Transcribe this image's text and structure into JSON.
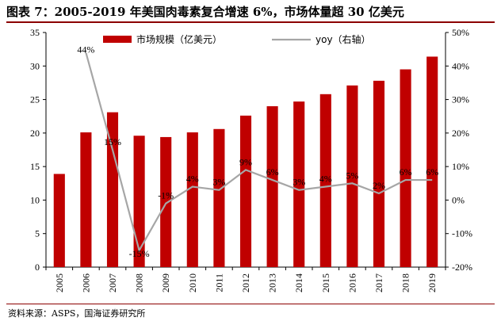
{
  "header": {
    "title": "图表 7：2005-2019 年美国肉毒素复合增速 6%，市场体量超 30 亿美元"
  },
  "footer": {
    "source": "资料来源：ASPS，国海证券研究所"
  },
  "colors": {
    "bar": "#c00000",
    "line": "#a6a6a6",
    "axis": "#000000",
    "rule": "#8b0000"
  },
  "chart_data": {
    "type": "bar",
    "categories": [
      "2005",
      "2006",
      "2007",
      "2008",
      "2009",
      "2010",
      "2011",
      "2012",
      "2013",
      "2014",
      "2015",
      "2016",
      "2017",
      "2018",
      "2019"
    ],
    "series": [
      {
        "name": "市场规模（亿美元）",
        "type": "bar",
        "axis": "left",
        "values": [
          13.9,
          20.1,
          23.1,
          19.6,
          19.4,
          20.1,
          20.6,
          22.6,
          24.0,
          24.7,
          25.8,
          27.1,
          27.8,
          29.5,
          31.4
        ]
      },
      {
        "name": "yoy（右轴）",
        "type": "line",
        "axis": "right",
        "values": [
          null,
          44,
          15,
          -15,
          -1,
          4,
          3,
          9,
          6,
          3,
          4,
          5,
          2,
          6,
          6
        ],
        "labels": [
          "",
          "44%",
          "15%",
          "-15%",
          "-1%",
          "4%",
          "3%",
          "9%",
          "6%",
          "3%",
          "4%",
          "5%",
          "2%",
          "6%",
          "6%"
        ]
      }
    ],
    "left_axis": {
      "min": 0,
      "max": 35,
      "ticks": [
        "0",
        "5",
        "10",
        "15",
        "20",
        "25",
        "30",
        "35"
      ]
    },
    "right_axis": {
      "min": -20,
      "max": 50,
      "ticks": [
        "-20%",
        "-10%",
        "0%",
        "10%",
        "20%",
        "30%",
        "40%",
        "50%"
      ]
    },
    "legend_position": "top",
    "grid": false
  }
}
